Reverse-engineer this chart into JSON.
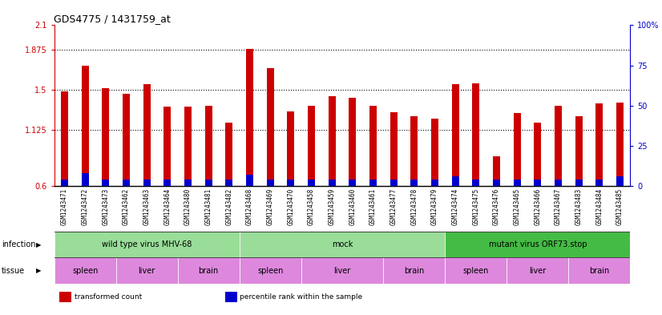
{
  "title": "GDS4775 / 1431759_at",
  "samples": [
    "GSM1243471",
    "GSM1243472",
    "GSM1243473",
    "GSM1243462",
    "GSM1243463",
    "GSM1243464",
    "GSM1243480",
    "GSM1243481",
    "GSM1243482",
    "GSM1243468",
    "GSM1243469",
    "GSM1243470",
    "GSM1243458",
    "GSM1243459",
    "GSM1243460",
    "GSM1243461",
    "GSM1243477",
    "GSM1243478",
    "GSM1243479",
    "GSM1243474",
    "GSM1243475",
    "GSM1243476",
    "GSM1243465",
    "GSM1243466",
    "GSM1243467",
    "GSM1243483",
    "GSM1243484",
    "GSM1243485"
  ],
  "transformed_count": [
    1.48,
    1.72,
    1.51,
    1.46,
    1.55,
    1.34,
    1.34,
    1.35,
    1.19,
    1.88,
    1.7,
    1.3,
    1.35,
    1.44,
    1.42,
    1.35,
    1.29,
    1.25,
    1.23,
    1.55,
    1.56,
    0.88,
    1.28,
    1.19,
    1.35,
    1.25,
    1.37,
    1.38
  ],
  "percentile_rank": [
    4,
    8,
    4,
    4,
    4,
    4,
    4,
    4,
    4,
    7,
    4,
    4,
    4,
    4,
    4,
    4,
    4,
    4,
    4,
    6,
    4,
    4,
    4,
    4,
    4,
    4,
    4,
    6
  ],
  "bar_color": "#cc0000",
  "blue_color": "#0000cc",
  "ylim_left": [
    0.6,
    2.1
  ],
  "ylim_right": [
    0,
    100
  ],
  "yticks_left": [
    0.6,
    1.125,
    1.5,
    1.875,
    2.1
  ],
  "yticks_right": [
    0,
    25,
    50,
    75,
    100
  ],
  "ytick_labels_left": [
    "0.6",
    "1.125",
    "1.5",
    "1.875",
    "2.1"
  ],
  "ytick_labels_right": [
    "0",
    "25",
    "50",
    "75",
    "100%"
  ],
  "hlines": [
    1.125,
    1.5,
    1.875
  ],
  "infection_labels": [
    {
      "label": "wild type virus MHV-68",
      "start": 0,
      "end": 9,
      "color": "#99dd99"
    },
    {
      "label": "mock",
      "start": 9,
      "end": 19,
      "color": "#99dd99"
    },
    {
      "label": "mutant virus ORF73.stop",
      "start": 19,
      "end": 28,
      "color": "#44bb44"
    }
  ],
  "tissue_labels": [
    {
      "label": "spleen",
      "start": 0,
      "end": 3,
      "color": "#dd88dd"
    },
    {
      "label": "liver",
      "start": 3,
      "end": 6,
      "color": "#dd88dd"
    },
    {
      "label": "brain",
      "start": 6,
      "end": 9,
      "color": "#dd88dd"
    },
    {
      "label": "spleen",
      "start": 9,
      "end": 12,
      "color": "#dd88dd"
    },
    {
      "label": "liver",
      "start": 12,
      "end": 16,
      "color": "#dd88dd"
    },
    {
      "label": "brain",
      "start": 16,
      "end": 19,
      "color": "#dd88dd"
    },
    {
      "label": "spleen",
      "start": 19,
      "end": 22,
      "color": "#dd88dd"
    },
    {
      "label": "liver",
      "start": 22,
      "end": 25,
      "color": "#dd88dd"
    },
    {
      "label": "brain",
      "start": 25,
      "end": 28,
      "color": "#dd88dd"
    }
  ],
  "infection_row_label": "infection",
  "tissue_row_label": "tissue",
  "legend_items": [
    {
      "color": "#cc0000",
      "label": "transformed count"
    },
    {
      "color": "#0000cc",
      "label": "percentile rank within the sample"
    }
  ],
  "bg_color": "#e0e0e0",
  "plot_bg": "#ffffff",
  "xtick_bg": "#cccccc"
}
